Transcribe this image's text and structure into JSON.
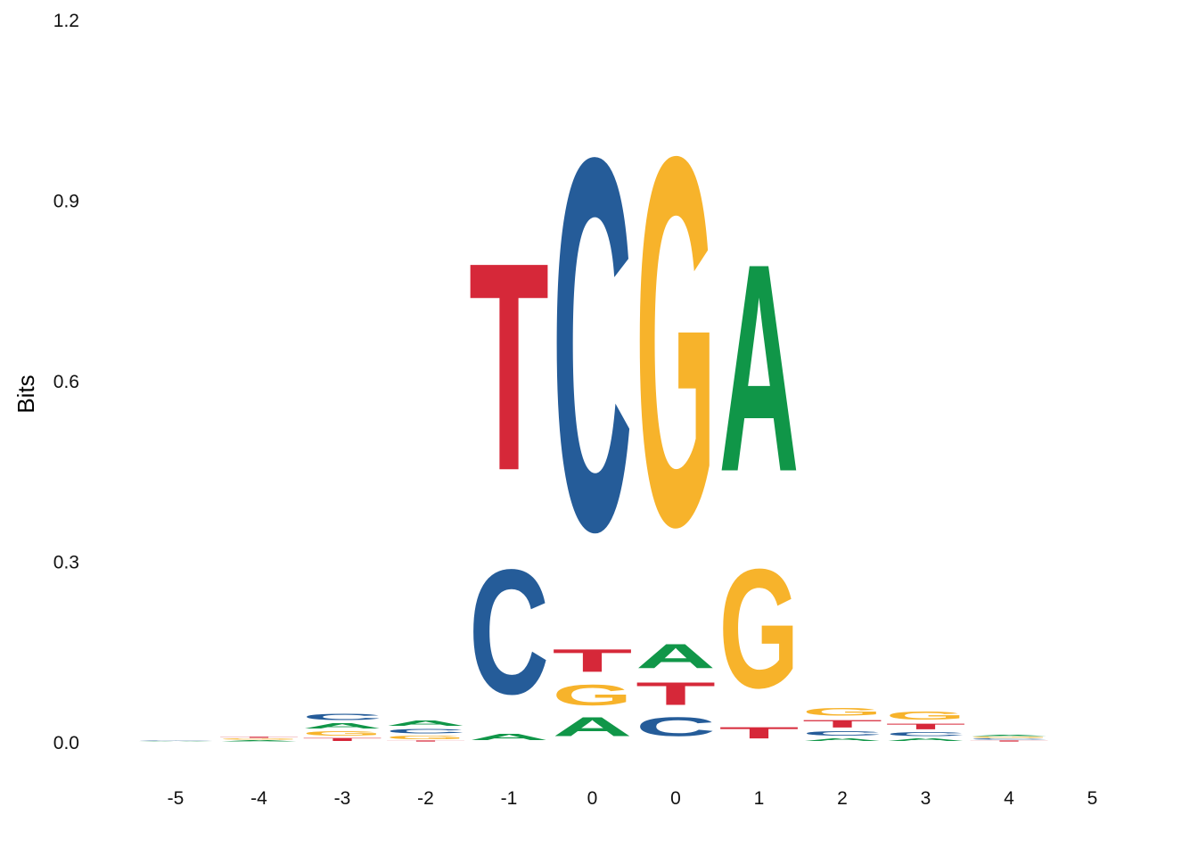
{
  "chart_data": {
    "type": "sequence-logo",
    "ylabel": "Bits",
    "ylim": [
      0,
      1.2
    ],
    "yticks": [
      "0.0",
      "0.3",
      "0.6",
      "0.9",
      "1.2"
    ],
    "ytick_values": [
      0,
      0.3,
      0.6,
      0.9,
      1.2
    ],
    "x_tick_labels": [
      "-5",
      "-4",
      "-3",
      "-2",
      "-1",
      "0",
      "0",
      "1",
      "2",
      "3",
      "4",
      "5"
    ],
    "colors": {
      "A": "#109648",
      "C": "#255C99",
      "G": "#F7B32B",
      "T": "#D62839"
    },
    "positions": [
      {
        "label": "-5",
        "stack": [
          {
            "base": "A",
            "height": 0.002
          },
          {
            "base": "C",
            "height": 0.002
          }
        ]
      },
      {
        "label": "-4",
        "stack": [
          {
            "base": "A",
            "height": 0.003
          },
          {
            "base": "G",
            "height": 0.003
          },
          {
            "base": "T",
            "height": 0.003
          }
        ]
      },
      {
        "label": "-3",
        "stack": [
          {
            "base": "T",
            "height": 0.008
          },
          {
            "base": "G",
            "height": 0.012
          },
          {
            "base": "A",
            "height": 0.013
          },
          {
            "base": "C",
            "height": 0.016
          }
        ]
      },
      {
        "label": "-2",
        "stack": [
          {
            "base": "T",
            "height": 0.003
          },
          {
            "base": "G",
            "height": 0.009
          },
          {
            "base": "C",
            "height": 0.012
          },
          {
            "base": "A",
            "height": 0.013
          }
        ]
      },
      {
        "label": "-1",
        "stack": [
          {
            "base": "A",
            "height": 0.017
          },
          {
            "base": "C",
            "height": 0.33
          },
          {
            "base": "T",
            "height": 0.55
          }
        ]
      },
      {
        "label": "0",
        "stack": [
          {
            "base": "A",
            "height": 0.05
          },
          {
            "base": "G",
            "height": 0.055
          },
          {
            "base": "T",
            "height": 0.06
          },
          {
            "base": "C",
            "height": 0.985
          }
        ]
      },
      {
        "label": "0",
        "stack": [
          {
            "base": "C",
            "height": 0.05
          },
          {
            "base": "T",
            "height": 0.06
          },
          {
            "base": "A",
            "height": 0.065
          },
          {
            "base": "G",
            "height": 0.975
          }
        ]
      },
      {
        "label": "1",
        "stack": [
          {
            "base": "T",
            "height": 0.03
          },
          {
            "base": "G",
            "height": 0.315
          },
          {
            "base": "A",
            "height": 0.55
          }
        ]
      },
      {
        "label": "2",
        "stack": [
          {
            "base": "A",
            "height": 0.008
          },
          {
            "base": "C",
            "height": 0.012
          },
          {
            "base": "T",
            "height": 0.02
          },
          {
            "base": "G",
            "height": 0.02
          }
        ]
      },
      {
        "label": "3",
        "stack": [
          {
            "base": "A",
            "height": 0.008
          },
          {
            "base": "C",
            "height": 0.01
          },
          {
            "base": "T",
            "height": 0.015
          },
          {
            "base": "G",
            "height": 0.022
          }
        ]
      },
      {
        "label": "4",
        "stack": [
          {
            "base": "T",
            "height": 0.003
          },
          {
            "base": "C",
            "height": 0.003
          },
          {
            "base": "G",
            "height": 0.003
          },
          {
            "base": "A",
            "height": 0.003
          }
        ]
      },
      {
        "label": "5",
        "stack": []
      }
    ]
  }
}
